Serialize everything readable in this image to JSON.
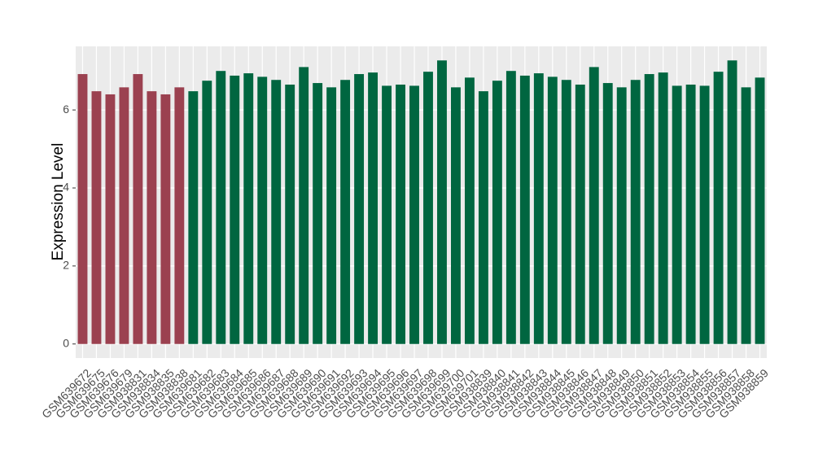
{
  "chart_data": {
    "type": "bar",
    "y_label": "Expression Level",
    "categories": [
      "GSM639672",
      "GSM639675",
      "GSM639676",
      "GSM639679",
      "GSM938831",
      "GSM938834",
      "GSM938835",
      "GSM938838",
      "GSM639681",
      "GSM639682",
      "GSM639683",
      "GSM639684",
      "GSM639685",
      "GSM639686",
      "GSM639687",
      "GSM639688",
      "GSM639689",
      "GSM639690",
      "GSM639691",
      "GSM639692",
      "GSM639693",
      "GSM639694",
      "GSM639695",
      "GSM639696",
      "GSM639697",
      "GSM639698",
      "GSM639699",
      "GSM639700",
      "GSM639701",
      "GSM938839",
      "GSM938840",
      "GSM938841",
      "GSM938842",
      "GSM938843",
      "GSM938844",
      "GSM938845",
      "GSM938846",
      "GSM938847",
      "GSM938848",
      "GSM938849",
      "GSM938850",
      "GSM938851",
      "GSM938852",
      "GSM938853",
      "GSM938854",
      "GSM938855",
      "GSM938856",
      "GSM938857",
      "GSM938858",
      "GSM938859"
    ],
    "values": [
      6.92,
      6.48,
      6.4,
      6.58,
      6.92,
      6.48,
      6.4,
      6.58,
      6.48,
      6.75,
      7.0,
      6.88,
      6.94,
      6.85,
      6.77,
      6.65,
      7.1,
      6.69,
      6.58,
      6.77,
      6.92,
      6.96,
      6.62,
      6.65,
      6.62,
      6.98,
      7.27,
      6.58,
      6.83,
      6.48,
      6.75,
      7.0,
      6.88,
      6.94,
      6.85,
      6.77,
      6.65,
      7.1,
      6.69,
      6.58,
      6.77,
      6.92,
      6.96,
      6.62,
      6.65,
      6.62,
      6.98,
      7.27,
      6.58,
      6.83
    ],
    "colors": [
      "#9b4150",
      "#9b4150",
      "#9b4150",
      "#9b4150",
      "#9b4150",
      "#9b4150",
      "#9b4150",
      "#9b4150",
      "#006640",
      "#006640",
      "#006640",
      "#006640",
      "#006640",
      "#006640",
      "#006640",
      "#006640",
      "#006640",
      "#006640",
      "#006640",
      "#006640",
      "#006640",
      "#006640",
      "#006640",
      "#006640",
      "#006640",
      "#006640",
      "#006640",
      "#006640",
      "#006640",
      "#006640",
      "#006640",
      "#006640",
      "#006640",
      "#006640",
      "#006640",
      "#006640",
      "#006640",
      "#006640",
      "#006640",
      "#006640",
      "#006640",
      "#006640",
      "#006640",
      "#006640",
      "#006640",
      "#006640",
      "#006640",
      "#006640",
      "#006640",
      "#006640"
    ],
    "ylim": [
      -0.36,
      7.63
    ],
    "yticks": [
      0,
      2,
      4,
      6
    ],
    "grid": true
  }
}
